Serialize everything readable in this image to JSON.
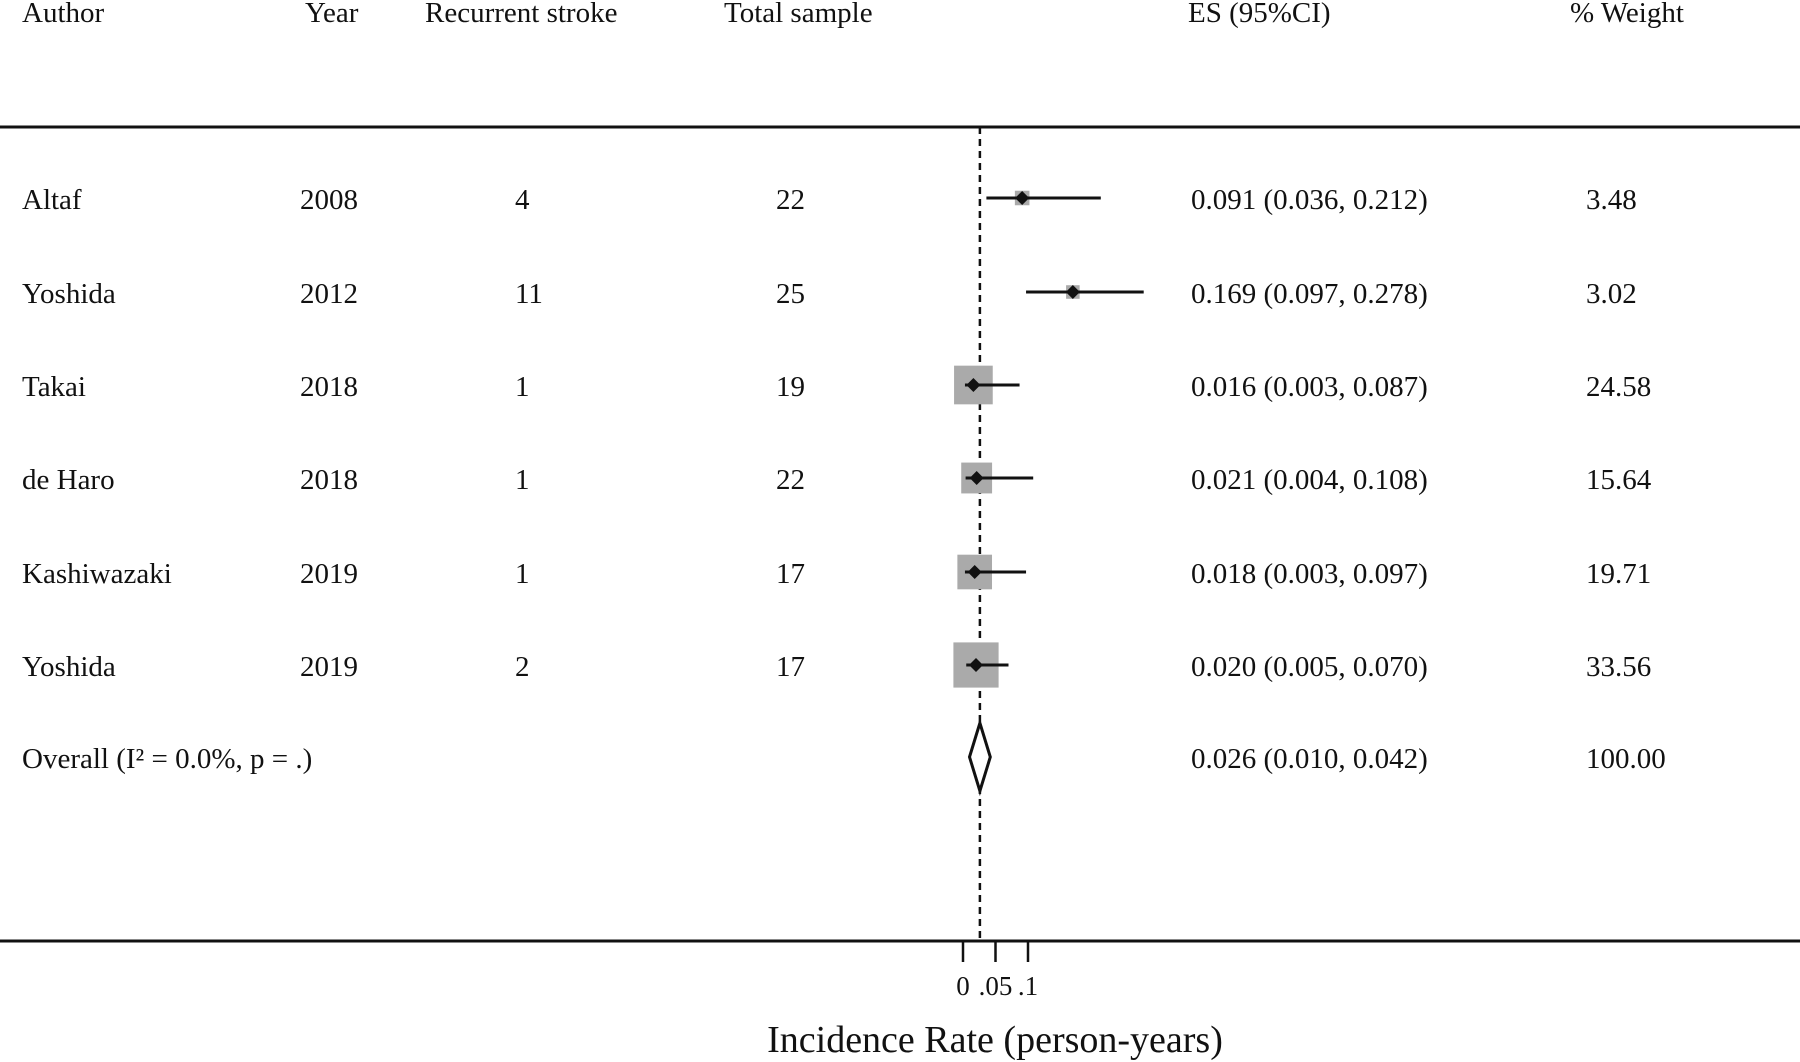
{
  "chart_data": {
    "type": "forest",
    "columns": {
      "author": "Author",
      "year": "Year",
      "recurrent": "Recurrent stroke",
      "total": "Total sample",
      "es": "ES (95%CI)",
      "weight": "% Weight"
    },
    "studies": [
      {
        "author": "Altaf",
        "year": "2008",
        "recurrent": "4",
        "total": "22",
        "es": 0.091,
        "lo": 0.036,
        "hi": 0.212,
        "es_text": "0.091 (0.036, 0.212)",
        "weight": 3.48,
        "weight_text": "3.48"
      },
      {
        "author": "Yoshida",
        "year": "2012",
        "recurrent": "11",
        "total": "25",
        "es": 0.169,
        "lo": 0.097,
        "hi": 0.278,
        "es_text": "0.169 (0.097, 0.278)",
        "weight": 3.02,
        "weight_text": "3.02"
      },
      {
        "author": "Takai",
        "year": "2018",
        "recurrent": "1",
        "total": "19",
        "es": 0.016,
        "lo": 0.003,
        "hi": 0.087,
        "es_text": "0.016 (0.003, 0.087)",
        "weight": 24.58,
        "weight_text": "24.58"
      },
      {
        "author": "de Haro",
        "year": "2018",
        "recurrent": "1",
        "total": "22",
        "es": 0.021,
        "lo": 0.004,
        "hi": 0.108,
        "es_text": "0.021 (0.004, 0.108)",
        "weight": 15.64,
        "weight_text": "15.64"
      },
      {
        "author": "Kashiwazaki",
        "year": "2019",
        "recurrent": "1",
        "total": "17",
        "es": 0.018,
        "lo": 0.003,
        "hi": 0.097,
        "es_text": "0.018 (0.003, 0.097)",
        "weight": 19.71,
        "weight_text": "19.71"
      },
      {
        "author": "Yoshida",
        "year": "2019",
        "recurrent": "2",
        "total": "17",
        "es": 0.02,
        "lo": 0.005,
        "hi": 0.07,
        "es_text": "0.020 (0.005, 0.070)",
        "weight": 33.56,
        "weight_text": "33.56"
      }
    ],
    "overall": {
      "label": "Overall  (I² = 0.0%, p = .)",
      "es": 0.026,
      "lo": 0.01,
      "hi": 0.042,
      "es_text": "0.026 (0.010, 0.042)",
      "weight_text": "100.00"
    },
    "reference_line": 0.026,
    "xticks": [
      {
        "value": 0,
        "label": "0"
      },
      {
        "value": 0.05,
        "label": ".05"
      },
      {
        "value": 0.1,
        "label": ".1"
      }
    ],
    "xlabel": "Incidence Rate (person-years)",
    "colors": {
      "box": "#aaaaaa",
      "line": "#111111",
      "diamond_fill": "#ffffff"
    }
  }
}
